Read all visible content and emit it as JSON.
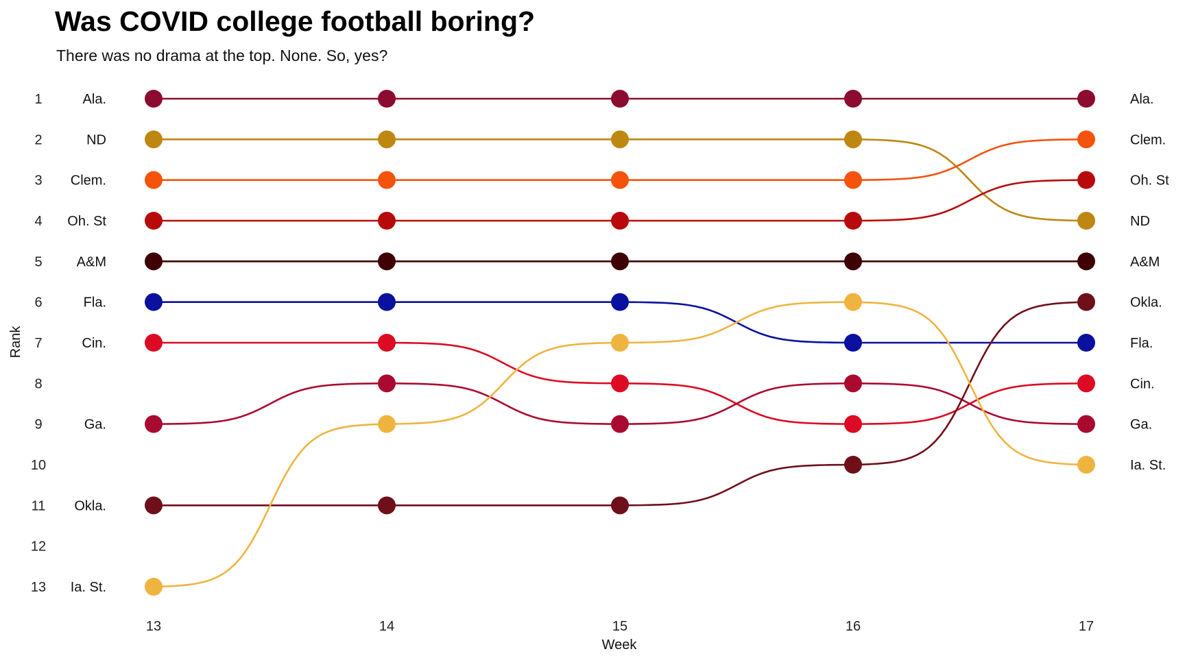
{
  "chart_data": {
    "type": "line",
    "title": "Was COVID college football boring?",
    "subtitle": "There was no drama at the top. None. So, yes?",
    "xlabel": "Week",
    "ylabel": "Rank",
    "x": [
      13,
      14,
      15,
      16,
      17
    ],
    "x_ticks": [
      "13",
      "14",
      "15",
      "16",
      "17"
    ],
    "y_ticks": [
      "1",
      "2",
      "3",
      "4",
      "5",
      "6",
      "7",
      "8",
      "9",
      "10",
      "11",
      "12",
      "13"
    ],
    "ylim": [
      1,
      13
    ],
    "y_reversed": true,
    "curve": "sigmoid-bump",
    "grid": false,
    "legend": "none (direct labels at first and last week)",
    "series": [
      {
        "name": "Ala.",
        "color": "#8B0C2E",
        "ranks": [
          1,
          1,
          1,
          1,
          1
        ]
      },
      {
        "name": "ND",
        "color": "#BE8712",
        "ranks": [
          2,
          2,
          2,
          2,
          4
        ]
      },
      {
        "name": "Clem.",
        "color": "#F5520C",
        "ranks": [
          3,
          3,
          3,
          3,
          2
        ]
      },
      {
        "name": "Oh. St",
        "color": "#B80A0A",
        "ranks": [
          4,
          4,
          4,
          4,
          3
        ]
      },
      {
        "name": "A&M",
        "color": "#3E0204",
        "ranks": [
          5,
          5,
          5,
          5,
          5
        ]
      },
      {
        "name": "Fla.",
        "color": "#0A119E",
        "ranks": [
          6,
          6,
          6,
          7,
          7
        ]
      },
      {
        "name": "Cin.",
        "color": "#DC0A22",
        "ranks": [
          7,
          7,
          8,
          9,
          8
        ]
      },
      {
        "name": "Ga.",
        "color": "#AA0A30",
        "ranks": [
          9,
          8,
          9,
          8,
          9
        ]
      },
      {
        "name": "Okla.",
        "color": "#6E0F1A",
        "ranks": [
          11,
          11,
          11,
          10,
          6
        ]
      },
      {
        "name": "Ia. St.",
        "color": "#EFB33F",
        "ranks": [
          13,
          9,
          7,
          6,
          10
        ]
      }
    ]
  }
}
